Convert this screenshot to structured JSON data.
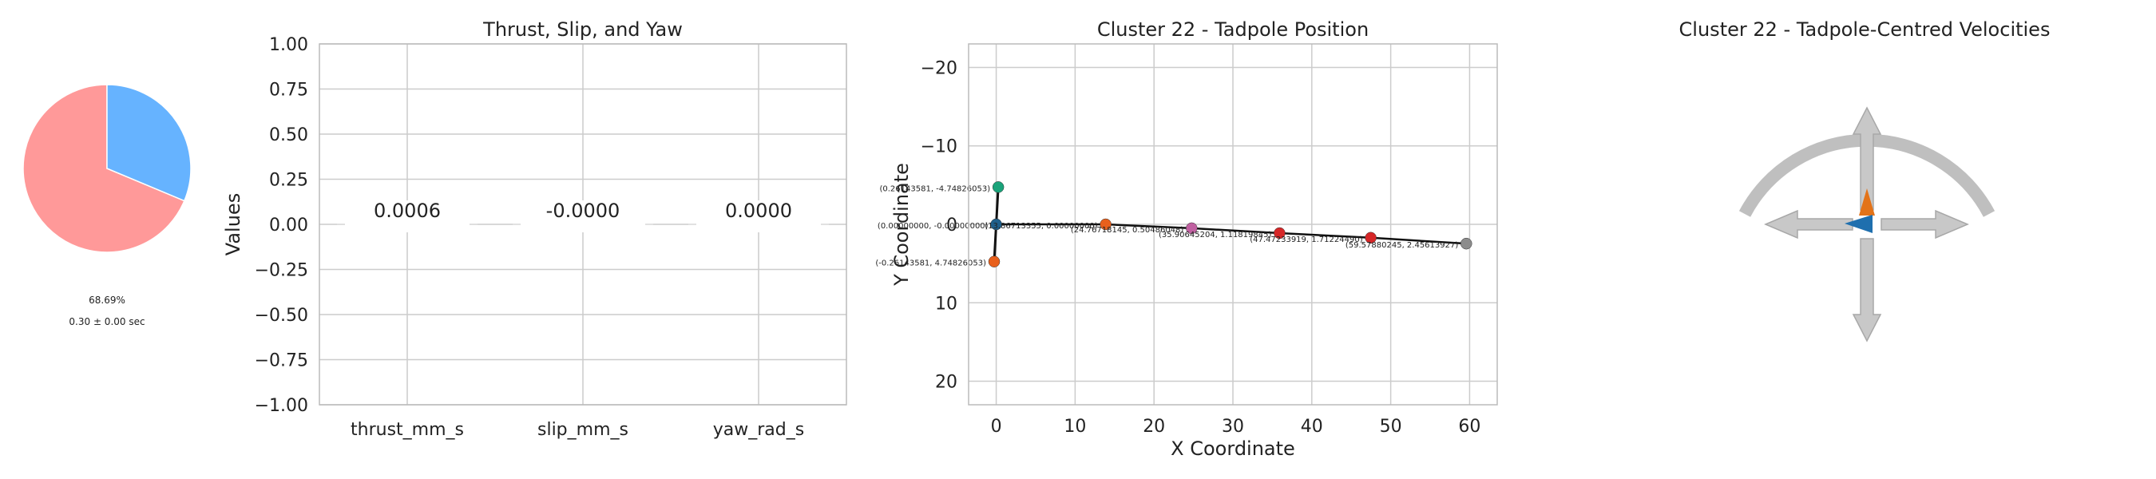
{
  "colors": {
    "pie_a": "#ff9999",
    "pie_b": "#66b3ff",
    "grid": "#cccccc",
    "frame": "#bbbbbb",
    "text": "#222222",
    "arrow": "#bfbfbf",
    "body_line": "#111111",
    "marker_green": "#1aa37a",
    "marker_blue": "#1f5f8b",
    "marker_orange": "#e8601c",
    "marker_purple": "#c060a1",
    "marker_red": "#d62728",
    "marker_gray": "#8c8c8c",
    "thrust_arrow": "#e37319",
    "slip_arrow": "#1f6fae"
  },
  "chart_data": [
    {
      "type": "pie",
      "values": [
        68.69,
        31.31
      ],
      "pct_label": "68.69%",
      "duration_label": "0.30 ± 0.00 sec"
    },
    {
      "type": "bar",
      "title": "Thrust, Slip, and Yaw",
      "ylabel": "Values",
      "categories": [
        "thrust_mm_s",
        "slip_mm_s",
        "yaw_rad_s"
      ],
      "values": [
        0.0006,
        0.0,
        0.0
      ],
      "value_labels": [
        "0.0006",
        "-0.0000",
        "0.0000"
      ],
      "ylim": [
        -1.0,
        1.0
      ],
      "yticks": [
        1.0,
        0.75,
        0.5,
        0.25,
        0.0,
        -0.25,
        -0.5,
        -0.75,
        -1.0
      ],
      "ytick_labels": [
        "1.00",
        "0.75",
        "0.50",
        "0.25",
        "0.00",
        "−0.25",
        "−0.50",
        "−0.75",
        "−1.00"
      ],
      "grid": true
    },
    {
      "type": "scatter",
      "title": "Cluster 22 - Tadpole Position",
      "xlabel": "X Coordinate",
      "ylabel": "Y Coordinate",
      "xlim": [
        -3.5,
        63.5
      ],
      "ylim": [
        -23.0,
        23.0
      ],
      "y_inverted": true,
      "xticks": [
        0,
        10,
        20,
        30,
        40,
        50,
        60
      ],
      "xtick_labels": [
        "0",
        "10",
        "20",
        "30",
        "40",
        "50",
        "60"
      ],
      "yticks": [
        -20,
        -10,
        0,
        10,
        20
      ],
      "ytick_labels": [
        "−20",
        "−10",
        "0",
        "10",
        "20"
      ],
      "grid": true,
      "points": [
        {
          "x": 0.26,
          "y": -4.75,
          "label": "(0.26143581, -4.74826053)",
          "color": "marker_green"
        },
        {
          "x": 0.0,
          "y": 0.0,
          "label": "(0.00000000, -0.00000000)",
          "color": "marker_blue"
        },
        {
          "x": -0.26,
          "y": 4.75,
          "label": "(-0.26143581, 4.74826053)",
          "color": "marker_orange"
        },
        {
          "x": 13.87,
          "y": 0.0,
          "label": "(13.86713355, 0.00000000)",
          "color": "marker_orange"
        },
        {
          "x": 24.77,
          "y": 0.5,
          "label": "(24.76718145, 0.50486048)",
          "color": "marker_purple"
        },
        {
          "x": 35.91,
          "y": 1.12,
          "label": "(35.90645204, 1.11819845)",
          "color": "marker_red"
        },
        {
          "x": 47.47,
          "y": 1.71,
          "label": "(47.47233919, 1.71224490)",
          "color": "marker_red"
        },
        {
          "x": 59.58,
          "y": 2.46,
          "label": "(59.57880245, 2.45613927)",
          "color": "marker_gray"
        }
      ],
      "body_line": [
        [
          0.26,
          -4.75
        ],
        [
          0.0,
          0.0
        ],
        [
          -0.26,
          4.75
        ]
      ],
      "tail_line": [
        [
          0.0,
          0.0
        ],
        [
          13.87,
          0.0
        ],
        [
          24.77,
          0.5
        ],
        [
          35.91,
          1.12
        ],
        [
          47.47,
          1.71
        ],
        [
          59.58,
          2.46
        ]
      ]
    },
    {
      "type": "diagram",
      "title": "Cluster 22 - Tadpole-Centred Velocities",
      "arrows": [
        "up",
        "down",
        "left",
        "right"
      ],
      "arc": "semicircle-top"
    }
  ]
}
